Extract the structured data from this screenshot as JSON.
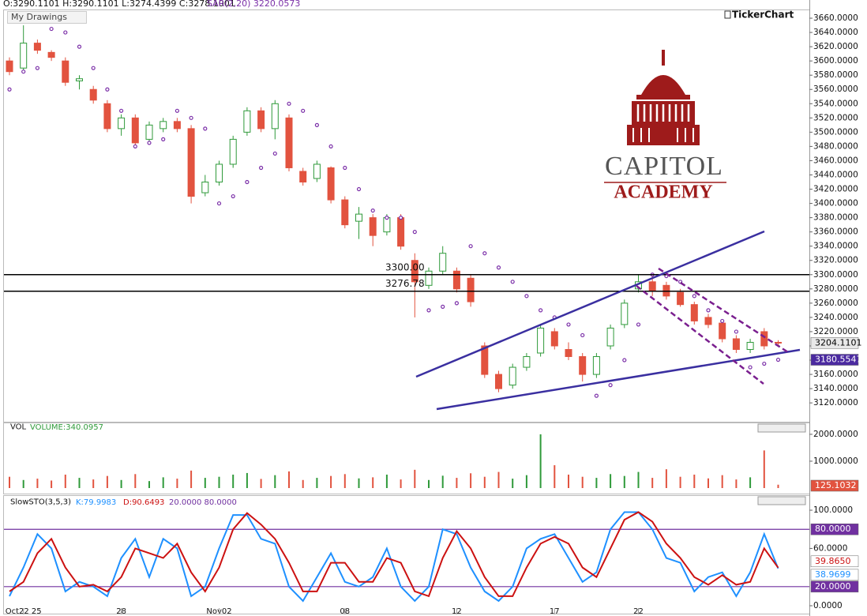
{
  "header": {
    "ohlc": "O:3290.1101 H:3290.1101 L:3274.4399 C:3278.1001",
    "indicator": "SAR(2,20) 3220.0573",
    "drawings": "My Drawings",
    "brand": "TickerChart"
  },
  "logo": {
    "line1": "CAPITOL",
    "line2": "ACADEMY"
  },
  "chart_data": [
    {
      "type": "candlestick",
      "categories": [
        null,
        "Oct22 25",
        null,
        null,
        null,
        null,
        null,
        null,
        "28",
        null,
        null,
        null,
        null,
        null,
        null,
        "Nov02",
        null,
        null,
        null,
        null,
        null,
        null,
        null,
        null,
        "08",
        null,
        null,
        null,
        null,
        null,
        null,
        null,
        "12",
        null,
        null,
        null,
        null,
        null,
        null,
        "17",
        null,
        null,
        null,
        null,
        null,
        "22",
        null,
        null,
        null,
        null,
        null,
        null,
        null,
        null,
        null,
        null
      ],
      "open": [
        3600,
        3590,
        3625,
        3612,
        3600,
        3572,
        3560,
        3540,
        3505,
        3520,
        3490,
        3505,
        3515,
        3505,
        3415,
        3430,
        3455,
        3500,
        3530,
        3505,
        3520,
        3445,
        3435,
        3450,
        3405,
        3375,
        3380,
        3360,
        3380,
        3320,
        3285,
        3305,
        3305,
        3295,
        3200,
        3160,
        3145,
        3170,
        3190,
        3220,
        3195,
        3185,
        3160,
        3200,
        3230,
        3280,
        3290,
        3285,
        3275,
        3258,
        3240,
        3232,
        3210,
        3195,
        3220,
        3205
      ],
      "high": [
        3605,
        3650,
        3630,
        3615,
        3605,
        3580,
        3565,
        3545,
        3525,
        3525,
        3515,
        3520,
        3520,
        3510,
        3440,
        3460,
        3495,
        3535,
        3535,
        3545,
        3525,
        3450,
        3460,
        3452,
        3410,
        3395,
        3385,
        3385,
        3385,
        3330,
        3310,
        3340,
        3310,
        3300,
        3205,
        3165,
        3175,
        3190,
        3230,
        3225,
        3205,
        3190,
        3190,
        3230,
        3265,
        3300,
        3300,
        3290,
        3280,
        3262,
        3245,
        3235,
        3215,
        3210,
        3225,
        3208
      ],
      "low": [
        3580,
        3585,
        3610,
        3600,
        3565,
        3560,
        3540,
        3500,
        3495,
        3480,
        3485,
        3500,
        3500,
        3400,
        3410,
        3425,
        3450,
        3495,
        3500,
        3490,
        3445,
        3425,
        3430,
        3400,
        3365,
        3350,
        3340,
        3355,
        3335,
        3240,
        3280,
        3300,
        3275,
        3255,
        3155,
        3135,
        3140,
        3165,
        3185,
        3195,
        3180,
        3150,
        3155,
        3195,
        3225,
        3275,
        3270,
        3265,
        3255,
        3230,
        3225,
        3205,
        3190,
        3190,
        3195,
        3200
      ],
      "close": [
        3585,
        3625,
        3615,
        3605,
        3570,
        3575,
        3545,
        3505,
        3520,
        3485,
        3510,
        3515,
        3505,
        3410,
        3430,
        3455,
        3490,
        3530,
        3505,
        3540,
        3450,
        3430,
        3455,
        3405,
        3370,
        3385,
        3355,
        3380,
        3340,
        3290,
        3305,
        3330,
        3280,
        3262,
        3160,
        3140,
        3170,
        3185,
        3225,
        3200,
        3185,
        3160,
        3185,
        3225,
        3260,
        3290,
        3278.1001,
        3270,
        3258,
        3235,
        3230,
        3210,
        3195,
        3205,
        3200,
        3204.1101
      ],
      "value_labels": [
        null,
        null,
        null,
        null,
        null,
        null,
        null,
        null,
        null,
        null,
        null,
        null,
        null,
        null,
        null,
        null,
        null,
        null,
        null,
        null,
        null,
        null,
        null,
        null,
        null,
        null,
        null,
        null,
        null,
        null,
        null,
        null,
        null,
        null,
        null,
        null,
        null,
        null,
        null,
        null,
        null,
        null,
        null,
        null,
        null,
        null,
        null,
        null,
        null,
        null,
        null,
        null,
        null,
        null,
        null,
        "3204.1101"
      ],
      "colors": {
        "up": "#2f9a3a",
        "down": "#e2533f"
      },
      "sar": {
        "color": "#7b2fa8",
        "values": [
          3560,
          3585,
          3590,
          3645,
          3640,
          3620,
          3590,
          3560,
          3530,
          3480,
          3485,
          3490,
          3530,
          3520,
          3505,
          3400,
          3410,
          3430,
          3450,
          3470,
          3540,
          3530,
          3510,
          3480,
          3450,
          3420,
          3390,
          3380,
          3380,
          3360,
          3250,
          3255,
          3260,
          3340,
          3330,
          3310,
          3290,
          3270,
          3250,
          3240,
          3230,
          3215,
          3130,
          3145,
          3180,
          3230,
          3300,
          3298,
          3290,
          3270,
          3250,
          3235,
          3220,
          3170,
          3175,
          3180.5547
        ],
        "value_labels": [
          null,
          null,
          null,
          null,
          null,
          null,
          null,
          null,
          null,
          null,
          null,
          null,
          null,
          null,
          null,
          null,
          null,
          null,
          null,
          null,
          null,
          null,
          null,
          null,
          null,
          null,
          null,
          null,
          null,
          null,
          null,
          null,
          null,
          null,
          null,
          null,
          null,
          null,
          null,
          null,
          null,
          null,
          null,
          null,
          null,
          null,
          null,
          null,
          null,
          null,
          null,
          null,
          null,
          null,
          null,
          "3180.5547"
        ]
      },
      "levels": [
        {
          "value": 3300,
          "label": "3300.00"
        },
        {
          "value": 3276.78,
          "label": "3276.78"
        }
      ],
      "ylim": [
        3098,
        3680
      ],
      "yticks": [
        {
          "value": 3120,
          "label": "3120.0000"
        },
        {
          "value": 3140,
          "label": "3140.0000"
        },
        {
          "value": 3160,
          "label": "3160.0000"
        },
        {
          "value": 3180,
          "label": "3180.0000"
        },
        {
          "value": 3200,
          "label": "3200.0000"
        },
        {
          "value": 3220,
          "label": "3220.0000"
        },
        {
          "value": 3240,
          "label": "3240.0000"
        },
        {
          "value": 3260,
          "label": "3260.0000"
        },
        {
          "value": 3280,
          "label": "3280.0000"
        },
        {
          "value": 3300,
          "label": "3300.0000"
        },
        {
          "value": 3320,
          "label": "3320.0000"
        },
        {
          "value": 3340,
          "label": "3340.0000"
        },
        {
          "value": 3360,
          "label": "3360.0000"
        },
        {
          "value": 3380,
          "label": "3380.0000"
        },
        {
          "value": 3400,
          "label": "3400.0000"
        },
        {
          "value": 3420,
          "label": "3420.0000"
        },
        {
          "value": 3440,
          "label": "3440.0000"
        },
        {
          "value": 3460,
          "label": "3460.0000"
        },
        {
          "value": 3480,
          "label": "3480.0000"
        },
        {
          "value": 3500,
          "label": "3500.0000"
        },
        {
          "value": 3520,
          "label": "3520.0000"
        },
        {
          "value": 3540,
          "label": "3540.0000"
        },
        {
          "value": 3560,
          "label": "3560.0000"
        },
        {
          "value": 3580,
          "label": "3580.0000"
        },
        {
          "value": 3600,
          "label": "3600.0000"
        },
        {
          "value": 3620,
          "label": "3620.0000"
        },
        {
          "value": 3640,
          "label": "3640.0000"
        },
        {
          "value": 3660,
          "label": "3660.0000"
        }
      ]
    },
    {
      "type": "bar",
      "title": "VOL",
      "subtitle": "VOLUME:340.0957",
      "values": [
        420,
        300,
        350,
        280,
        500,
        380,
        320,
        450,
        300,
        520,
        260,
        400,
        350,
        650,
        380,
        420,
        500,
        560,
        340,
        480,
        620,
        300,
        380,
        450,
        520,
        360,
        400,
        500,
        320,
        680,
        300,
        460,
        380,
        550,
        420,
        600,
        350,
        480,
        2000,
        850,
        500,
        420,
        380,
        520,
        450,
        600,
        380,
        700,
        420,
        500,
        360,
        480,
        320,
        400,
        1400,
        125.1032
      ],
      "value_labels": [
        null,
        null,
        null,
        null,
        null,
        null,
        null,
        null,
        null,
        null,
        null,
        null,
        null,
        null,
        null,
        null,
        null,
        null,
        null,
        null,
        null,
        null,
        null,
        null,
        null,
        null,
        null,
        null,
        null,
        null,
        null,
        null,
        null,
        null,
        null,
        null,
        null,
        null,
        null,
        null,
        null,
        null,
        null,
        null,
        null,
        null,
        null,
        null,
        null,
        null,
        null,
        null,
        null,
        null,
        null,
        "125.1032"
      ],
      "ylim": [
        0,
        2380
      ],
      "yticks": [
        {
          "value": 1000,
          "label": "1000.0000"
        },
        {
          "value": 2000,
          "label": "2000.0000"
        }
      ]
    },
    {
      "type": "line",
      "title": "SlowSTO(3,5,3)",
      "levels_text": "20.0000 80.0000",
      "series": [
        {
          "name": "K:79.9983",
          "color": "#1e90ff",
          "values": [
            10,
            40,
            75,
            60,
            15,
            25,
            20,
            10,
            50,
            70,
            30,
            70,
            60,
            10,
            20,
            60,
            95,
            95,
            70,
            65,
            20,
            5,
            30,
            55,
            25,
            20,
            30,
            60,
            20,
            5,
            20,
            80,
            75,
            40,
            15,
            5,
            20,
            60,
            70,
            75,
            50,
            25,
            35,
            80,
            98,
            98,
            80,
            50,
            45,
            15,
            30,
            35,
            10,
            35,
            75,
            38.9699
          ],
          "value_labels": [
            null,
            null,
            null,
            null,
            null,
            null,
            null,
            null,
            null,
            null,
            null,
            null,
            null,
            null,
            null,
            null,
            null,
            null,
            null,
            null,
            null,
            null,
            null,
            null,
            null,
            null,
            null,
            null,
            null,
            null,
            null,
            null,
            null,
            null,
            null,
            null,
            null,
            null,
            null,
            null,
            null,
            null,
            null,
            null,
            null,
            null,
            null,
            null,
            null,
            null,
            null,
            null,
            null,
            null,
            null,
            "38.9699"
          ]
        },
        {
          "name": "D:90.6493",
          "color": "#cc1111",
          "values": [
            15,
            25,
            55,
            70,
            40,
            20,
            22,
            15,
            30,
            60,
            55,
            50,
            65,
            35,
            15,
            40,
            80,
            97,
            85,
            70,
            45,
            15,
            15,
            45,
            45,
            25,
            25,
            50,
            45,
            15,
            10,
            50,
            78,
            60,
            30,
            10,
            10,
            40,
            65,
            72,
            65,
            40,
            30,
            60,
            90,
            98,
            88,
            65,
            50,
            30,
            22,
            32,
            22,
            25,
            60,
            39.865
          ],
          "value_labels": [
            null,
            null,
            null,
            null,
            null,
            null,
            null,
            null,
            null,
            null,
            null,
            null,
            null,
            null,
            null,
            null,
            null,
            null,
            null,
            null,
            null,
            null,
            null,
            null,
            null,
            null,
            null,
            null,
            null,
            null,
            null,
            null,
            null,
            null,
            null,
            null,
            null,
            null,
            null,
            null,
            null,
            null,
            null,
            null,
            null,
            null,
            null,
            null,
            null,
            null,
            null,
            null,
            null,
            null,
            null,
            "39.8650"
          ]
        }
      ],
      "levels": [
        {
          "value": 80,
          "label": "80.0000"
        },
        {
          "value": 20,
          "label": "20.0000"
        }
      ],
      "level_color": "#7030a0",
      "ylim": [
        -6.6,
        111.6
      ],
      "yticks": [
        {
          "value": 0,
          "label": "0.0000"
        },
        {
          "value": 60,
          "label": "60.0000"
        },
        {
          "value": 100,
          "label": "100.0000"
        }
      ]
    }
  ]
}
